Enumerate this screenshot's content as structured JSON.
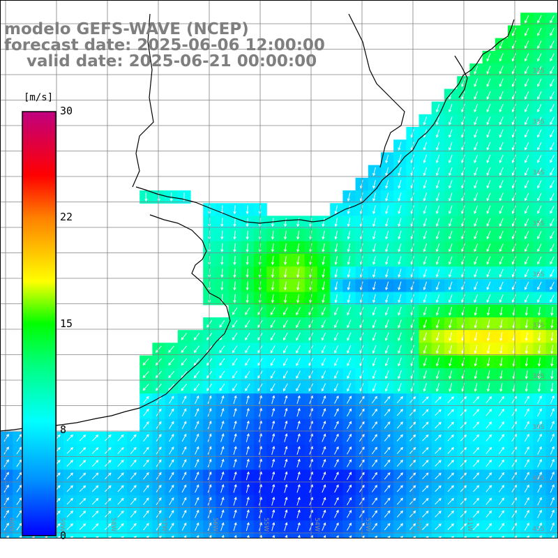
{
  "title": {
    "line1": "modelo GEFS-WAVE (NCEP)",
    "line2": "forecast date: 2025-06-06 12:00:00",
    "line3": "    valid date: 2025-06-21 00:00:00"
  },
  "colorbar": {
    "unit": "[m/s]",
    "ticks": [
      "30",
      "22",
      "15",
      "8",
      "0"
    ],
    "colors": [
      "#0000ff",
      "#0090ff",
      "#00ffff",
      "#00ff00",
      "#ffff00",
      "#ff8000",
      "#ff0000",
      "#c00080"
    ]
  },
  "lat_labels": [
    "32S",
    "33S",
    "34S",
    "35S",
    "36S",
    "37S",
    "38S",
    "39S",
    "40S",
    "41S"
  ],
  "lon_labels": [
    "60W",
    "59W",
    "58W",
    "57W",
    "56W",
    "55W",
    "54W",
    "53W",
    "52W",
    "51W"
  ],
  "chart_data": {
    "type": "heatmap",
    "variable": "wind speed",
    "unit": "[m/s]",
    "value_range": [
      0,
      30
    ],
    "colorbar_ticks": [
      0,
      8,
      15,
      22,
      30
    ]
  }
}
